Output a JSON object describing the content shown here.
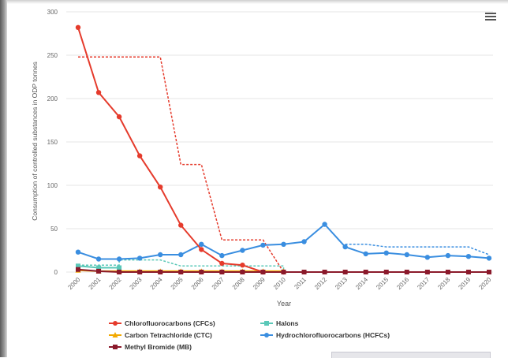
{
  "chart_data": {
    "type": "line",
    "title": "",
    "xlabel": "Year",
    "ylabel": "Consumption of controlled substances in ODP tonnes",
    "ylim": [
      0,
      300
    ],
    "yticks": [
      "0",
      "50",
      "100",
      "150",
      "200",
      "250",
      "300"
    ],
    "categories": [
      "2000",
      "2001",
      "2002",
      "2003",
      "2004",
      "2005",
      "2006",
      "2007",
      "2008",
      "2009",
      "2010",
      "2011",
      "2012",
      "2013",
      "2014",
      "2015",
      "2016",
      "2017",
      "2018",
      "2019",
      "2020"
    ],
    "grid": "horizontal",
    "legend_position": "bottom",
    "series": [
      {
        "name": "Chlorofluorocarbons (CFCs)",
        "color": "#e53b2c",
        "marker": "circle",
        "values": [
          282,
          207,
          179,
          134,
          98,
          54,
          26,
          10,
          8,
          0,
          0,
          null,
          null,
          null,
          null,
          null,
          null,
          null,
          null,
          null,
          null
        ]
      },
      {
        "name": "Halons",
        "color": "#5ac8b8",
        "marker": "square",
        "values": [
          7,
          5,
          5,
          null,
          null,
          null,
          null,
          null,
          null,
          null,
          null,
          null,
          null,
          null,
          null,
          null,
          null,
          null,
          null,
          null,
          null
        ]
      },
      {
        "name": "Carbon Tetrachloride (CTC)",
        "color": "#f2a900",
        "marker": "triangle",
        "values": [
          2,
          1,
          1,
          1,
          1,
          1,
          1,
          1,
          1,
          1,
          1,
          null,
          null,
          null,
          null,
          null,
          null,
          null,
          null,
          null,
          null
        ]
      },
      {
        "name": "Hydrochlorofluorocarbons (HCFCs)",
        "color": "#3a8ee0",
        "marker": "circle",
        "values": [
          23,
          15,
          15,
          16,
          20,
          20,
          32,
          19,
          25,
          31,
          32,
          35,
          55,
          29,
          21,
          22,
          20,
          17,
          19,
          18,
          16
        ]
      },
      {
        "name": "Methyl Bromide (MB)",
        "color": "#8b1a2b",
        "marker": "square",
        "values": [
          3,
          1,
          0,
          0,
          0,
          0,
          0,
          0,
          0,
          0,
          0,
          0,
          0,
          0,
          0,
          0,
          0,
          0,
          0,
          0,
          0
        ]
      }
    ],
    "limits": [
      {
        "color": "#e53b2c",
        "points": [
          [
            0,
            248
          ],
          [
            4,
            248
          ],
          [
            5,
            124
          ],
          [
            6,
            124
          ],
          [
            7,
            37
          ],
          [
            9,
            37
          ],
          [
            10,
            0
          ]
        ]
      },
      {
        "color": "#5ac8b8",
        "points": [
          [
            0,
            8
          ],
          [
            2,
            8
          ],
          [
            2,
            14
          ],
          [
            4,
            14
          ],
          [
            5,
            7
          ],
          [
            10,
            7
          ],
          [
            10,
            0
          ]
        ]
      },
      {
        "color": "#3a8ee0",
        "points": [
          [
            13,
            32
          ],
          [
            14,
            32
          ],
          [
            15,
            29
          ],
          [
            19,
            29
          ],
          [
            20,
            20
          ]
        ]
      }
    ]
  },
  "menu_icon": "hamburger-menu-icon"
}
